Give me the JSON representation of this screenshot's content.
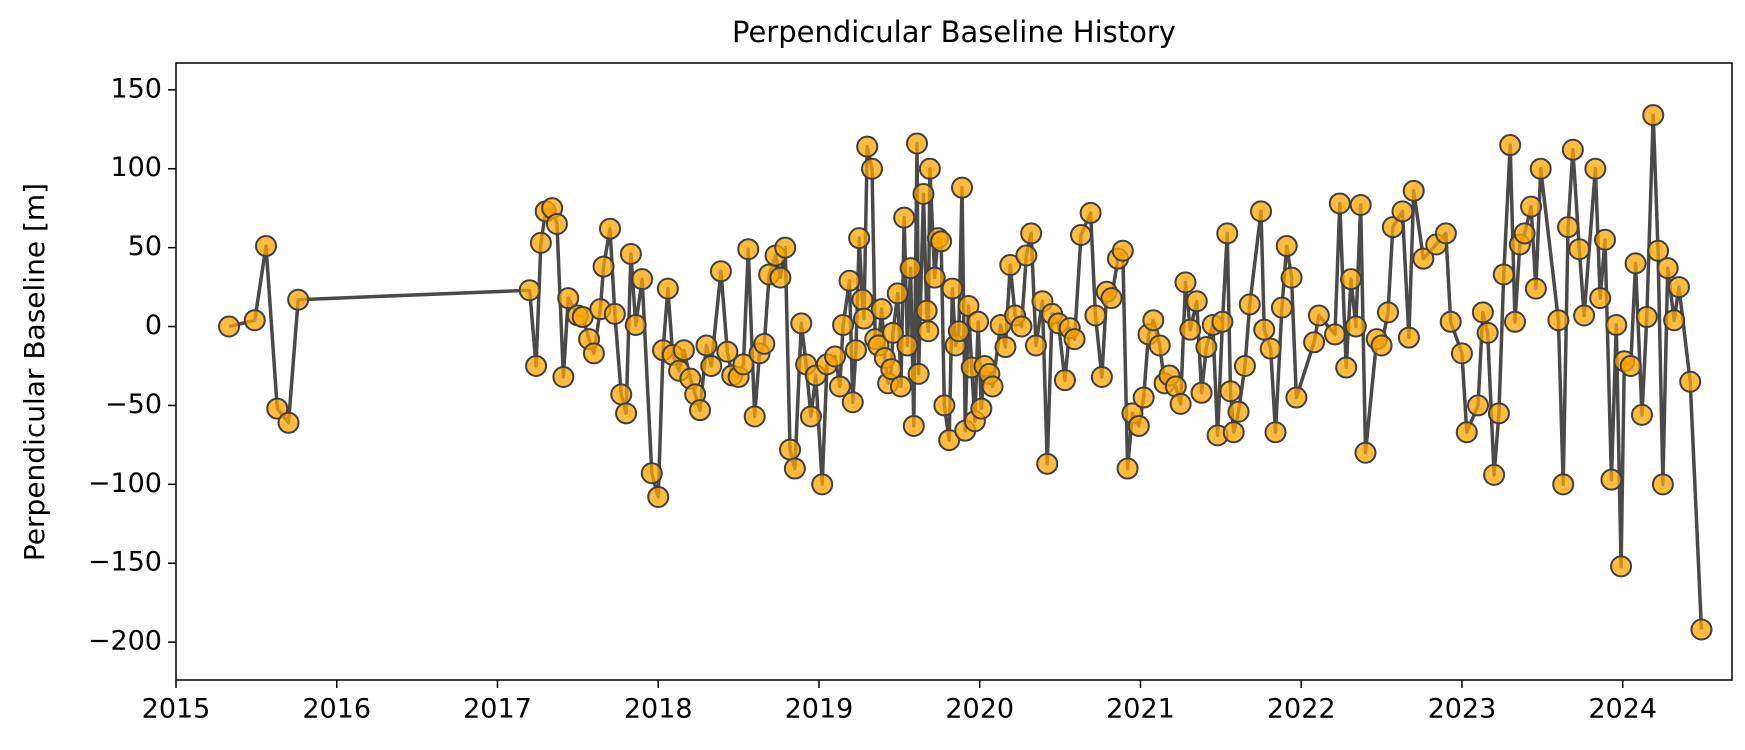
{
  "chart_data": {
    "type": "line",
    "title": "Perpendicular Baseline History",
    "ylabel": "Perpendicular Baseline [m]",
    "marker_color": "#ffa500",
    "line_color": "#404040",
    "xlim": [
      2015,
      2024.68
    ],
    "xticks": [
      2015,
      2016,
      2017,
      2018,
      2019,
      2020,
      2021,
      2022,
      2023,
      2024
    ],
    "ylim": [
      -224,
      167
    ],
    "yticks": [
      {
        "value": -200,
        "label": "−200"
      },
      {
        "value": -150,
        "label": "−150"
      },
      {
        "value": -100,
        "label": "−100"
      },
      {
        "value": -50,
        "label": "−50"
      },
      0,
      50,
      100,
      150
    ],
    "x": [
      2015.33,
      2015.49,
      2015.56,
      2015.63,
      2015.7,
      2015.76,
      2017.2,
      2017.24,
      2017.27,
      2017.3,
      2017.34,
      2017.37,
      2017.41,
      2017.44,
      2017.5,
      2017.53,
      2017.57,
      2017.6,
      2017.64,
      2017.66,
      2017.7,
      2017.73,
      2017.77,
      2017.8,
      2017.83,
      2017.86,
      2017.9,
      2017.96,
      2018.0,
      2018.03,
      2018.06,
      2018.09,
      2018.13,
      2018.16,
      2018.2,
      2018.23,
      2018.26,
      2018.3,
      2018.33,
      2018.39,
      2018.43,
      2018.46,
      2018.5,
      2018.53,
      2018.56,
      2018.6,
      2018.63,
      2018.66,
      2018.69,
      2018.73,
      2018.76,
      2018.79,
      2018.82,
      2018.85,
      2018.89,
      2018.92,
      2018.95,
      2018.98,
      2019.02,
      2019.05,
      2019.1,
      2019.13,
      2019.15,
      2019.19,
      2019.21,
      2019.23,
      2019.25,
      2019.27,
      2019.28,
      2019.3,
      2019.33,
      2019.35,
      2019.37,
      2019.39,
      2019.41,
      2019.43,
      2019.45,
      2019.46,
      2019.49,
      2019.51,
      2019.53,
      2019.55,
      2019.57,
      2019.59,
      2019.61,
      2019.62,
      2019.65,
      2019.67,
      2019.68,
      2019.69,
      2019.72,
      2019.74,
      2019.76,
      2019.78,
      2019.81,
      2019.83,
      2019.85,
      2019.87,
      2019.89,
      2019.91,
      2019.93,
      2019.95,
      2019.97,
      2019.99,
      2020.01,
      2020.03,
      2020.06,
      2020.08,
      2020.13,
      2020.16,
      2020.19,
      2020.22,
      2020.26,
      2020.29,
      2020.32,
      2020.35,
      2020.39,
      2020.42,
      2020.45,
      2020.49,
      2020.53,
      2020.56,
      2020.59,
      2020.63,
      2020.69,
      2020.72,
      2020.76,
      2020.79,
      2020.82,
      2020.86,
      2020.89,
      2020.92,
      2020.95,
      2020.99,
      2021.02,
      2021.05,
      2021.08,
      2021.12,
      2021.15,
      2021.18,
      2021.22,
      2021.25,
      2021.28,
      2021.31,
      2021.35,
      2021.38,
      2021.41,
      2021.45,
      2021.48,
      2021.51,
      2021.54,
      2021.56,
      2021.58,
      2021.61,
      2021.65,
      2021.68,
      2021.75,
      2021.77,
      2021.81,
      2021.84,
      2021.88,
      2021.91,
      2021.94,
      2021.97,
      2022.08,
      2022.11,
      2022.21,
      2022.24,
      2022.28,
      2022.31,
      2022.34,
      2022.37,
      2022.4,
      2022.47,
      2022.5,
      2022.54,
      2022.57,
      2022.63,
      2022.67,
      2022.7,
      2022.76,
      2022.84,
      2022.9,
      2022.93,
      2023.0,
      2023.03,
      2023.1,
      2023.13,
      2023.16,
      2023.2,
      2023.23,
      2023.26,
      2023.3,
      2023.33,
      2023.36,
      2023.39,
      2023.43,
      2023.46,
      2023.49,
      2023.6,
      2023.63,
      2023.66,
      2023.69,
      2023.73,
      2023.76,
      2023.83,
      2023.86,
      2023.89,
      2023.93,
      2023.96,
      2023.99,
      2024.01,
      2024.05,
      2024.08,
      2024.12,
      2024.15,
      2024.19,
      2024.22,
      2024.25,
      2024.28,
      2024.32,
      2024.35,
      2024.42,
      2024.49
    ],
    "values": [
      0,
      4,
      51,
      -52,
      -61,
      17,
      23,
      -25,
      53,
      73,
      75,
      65,
      -32,
      18,
      7,
      6,
      -8,
      -17,
      11,
      38,
      62,
      8,
      -43,
      -55,
      46,
      1,
      30,
      -93,
      -108,
      -15,
      24,
      -18,
      -28,
      -15,
      -33,
      -43,
      -53,
      -12,
      -25,
      35,
      -16,
      -31,
      -32,
      -24,
      49,
      -57,
      -17,
      -11,
      33,
      45,
      31,
      50,
      -78,
      -90,
      2,
      -24,
      -57,
      -31,
      -100,
      -24,
      -19,
      -38,
      1,
      29,
      -48,
      -15,
      56,
      17,
      5,
      114,
      100,
      -8,
      -12,
      11,
      -20,
      -36,
      -27,
      -4,
      21,
      -38,
      69,
      -12,
      37,
      -63,
      116,
      -30,
      84,
      10,
      -3,
      100,
      31,
      56,
      54,
      -50,
      -72,
      24,
      -12,
      -3,
      88,
      -66,
      13,
      -26,
      -60,
      3,
      -52,
      -25,
      -30,
      -38,
      1,
      -13,
      39,
      7,
      0,
      45,
      59,
      -12,
      16,
      -87,
      8,
      2,
      -34,
      -1,
      -8,
      58,
      72,
      7,
      -32,
      22,
      18,
      43,
      48,
      -90,
      -55,
      -63,
      -45,
      -5,
      4,
      -12,
      -36,
      -31,
      -38,
      -49,
      28,
      -2,
      16,
      -42,
      -13,
      1,
      -69,
      3,
      59,
      -41,
      -67,
      -54,
      -25,
      14,
      73,
      -2,
      -14,
      -67,
      12,
      51,
      31,
      -45,
      -10,
      7,
      -5,
      78,
      -26,
      30,
      0,
      77,
      -80,
      -8,
      -12,
      9,
      63,
      73,
      -7,
      86,
      43,
      52,
      59,
      3,
      -17,
      -67,
      -50,
      9,
      -4,
      -94,
      -55,
      33,
      115,
      3,
      52,
      59,
      76,
      24,
      100,
      4,
      -100,
      63,
      112,
      49,
      7,
      100,
      18,
      55,
      -97,
      1,
      -152,
      -22,
      -25,
      40,
      -56,
      6,
      134,
      48,
      -100,
      37,
      4,
      25,
      -35,
      -192
    ]
  }
}
